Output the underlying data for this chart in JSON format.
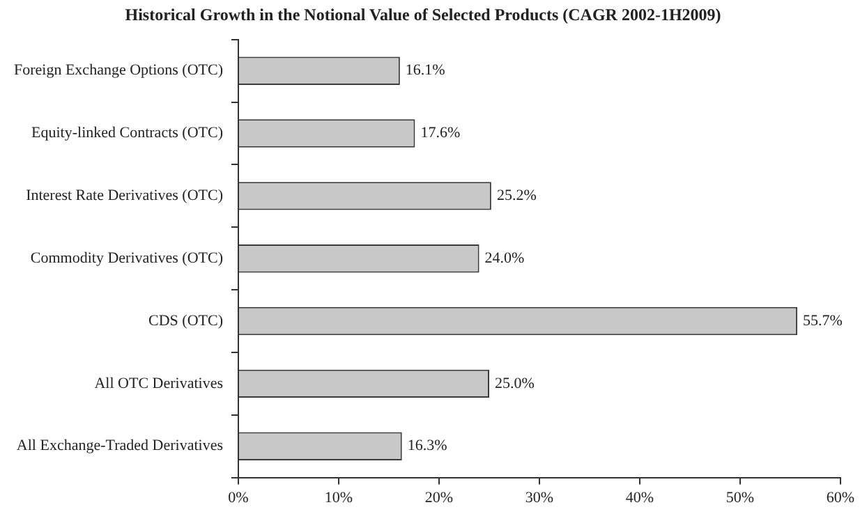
{
  "chart_data": {
    "type": "bar",
    "orientation": "horizontal",
    "title": "Historical Growth in the Notional Value of Selected Products (CAGR 2002-1H2009)",
    "categories": [
      "Foreign Exchange Options (OTC)",
      "Equity-linked Contracts (OTC)",
      "Interest Rate Derivatives (OTC)",
      "Commodity Derivatives (OTC)",
      "CDS (OTC)",
      "All OTC Derivatives",
      "All Exchange-Traded Derivatives"
    ],
    "values": [
      16.1,
      17.6,
      25.2,
      24.0,
      55.7,
      25.0,
      16.3
    ],
    "value_labels": [
      "16.1%",
      "17.6%",
      "25.2%",
      "24.0%",
      "55.7%",
      "25.0%",
      "16.3%"
    ],
    "color": "#c8c8c8",
    "xlim": [
      0,
      60
    ],
    "xticks": [
      {
        "value": 0,
        "label": "0%"
      },
      {
        "value": 10,
        "label": "10%"
      },
      {
        "value": 20,
        "label": "20%"
      },
      {
        "value": 30,
        "label": "30%"
      },
      {
        "value": 40,
        "label": "40%"
      },
      {
        "value": 50,
        "label": "50%"
      },
      {
        "value": 60,
        "label": "60%"
      }
    ],
    "grid": false,
    "legend": false
  }
}
